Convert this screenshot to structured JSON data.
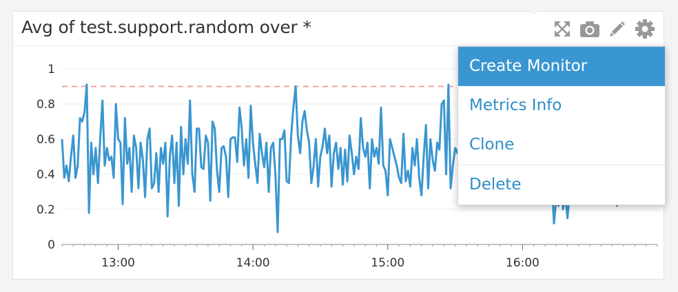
{
  "widget": {
    "title": "Avg of test.support.random over *"
  },
  "icons": {
    "expand": "expand-icon",
    "snapshot": "camera-icon",
    "edit": "pencil-icon",
    "settings": "gear-icon"
  },
  "menu": {
    "items": [
      {
        "label": "Create Monitor",
        "active": true
      },
      {
        "label": "Metrics Info",
        "active": false
      },
      {
        "label": "Clone",
        "active": false
      },
      {
        "label": "Delete",
        "active": false
      }
    ]
  },
  "colors": {
    "series": "#3a96d0",
    "threshold": "#f0a0a0",
    "menu_active_bg": "#3a96d0",
    "menu_text": "#2e8ec6"
  },
  "chart_data": {
    "type": "line",
    "title": "Avg of test.support.random over *",
    "xlabel": "",
    "ylabel": "",
    "ylim": [
      0,
      1
    ],
    "xlim_minutes": [
      755,
      1020
    ],
    "y_ticks": [
      "0",
      "0.2",
      "0.4",
      "0.6",
      "0.8",
      "1"
    ],
    "x_ticks": [
      {
        "label": "13:00",
        "minute": 780
      },
      {
        "label": "14:00",
        "minute": 840
      },
      {
        "label": "15:00",
        "minute": 900
      },
      {
        "label": "16:00",
        "minute": 960
      }
    ],
    "threshold": 0.9,
    "grid": true,
    "legend": "none",
    "x_start_minute": 755,
    "x_step_minutes": 1,
    "series": [
      {
        "values": [
          0.6,
          0.38,
          0.45,
          0.36,
          0.5,
          0.62,
          0.38,
          0.45,
          0.72,
          0.7,
          0.75,
          0.91,
          0.18,
          0.58,
          0.4,
          0.55,
          0.35,
          0.6,
          0.82,
          0.45,
          0.55,
          0.48,
          0.5,
          0.38,
          0.8,
          0.6,
          0.58,
          0.23,
          0.72,
          0.46,
          0.55,
          0.3,
          0.62,
          0.55,
          0.32,
          0.58,
          0.48,
          0.27,
          0.6,
          0.66,
          0.32,
          0.35,
          0.52,
          0.3,
          0.55,
          0.46,
          0.58,
          0.16,
          0.5,
          0.62,
          0.35,
          0.58,
          0.22,
          0.67,
          0.4,
          0.6,
          0.46,
          0.82,
          0.4,
          0.3,
          0.66,
          0.66,
          0.44,
          0.43,
          0.62,
          0.58,
          0.25,
          0.7,
          0.66,
          0.42,
          0.3,
          0.55,
          0.56,
          0.5,
          0.27,
          0.6,
          0.61,
          0.61,
          0.47,
          0.78,
          0.66,
          0.45,
          0.6,
          0.38,
          0.79,
          0.58,
          0.46,
          0.35,
          0.63,
          0.52,
          0.44,
          0.58,
          0.3,
          0.55,
          0.58,
          0.4,
          0.07,
          0.6,
          0.6,
          0.65,
          0.36,
          0.35,
          0.62,
          0.78,
          0.9,
          0.62,
          0.52,
          0.7,
          0.76,
          0.65,
          0.58,
          0.35,
          0.45,
          0.6,
          0.33,
          0.5,
          0.56,
          0.66,
          0.52,
          0.62,
          0.33,
          0.52,
          0.58,
          0.43,
          0.55,
          0.34,
          0.54,
          0.36,
          0.62,
          0.52,
          0.4,
          0.5,
          0.43,
          0.72,
          0.55,
          0.5,
          0.58,
          0.32,
          0.6,
          0.5,
          0.55,
          0.46,
          0.78,
          0.45,
          0.42,
          0.28,
          0.6,
          0.55,
          0.5,
          0.45,
          0.38,
          0.35,
          0.63,
          0.36,
          0.42,
          0.33,
          0.55,
          0.45,
          0.6,
          0.38,
          0.28,
          0.5,
          0.68,
          0.32,
          0.6,
          0.48,
          0.42,
          0.58,
          0.54,
          0.8,
          0.82,
          0.4,
          0.91,
          0.32,
          0.45,
          0.55,
          0.52,
          0.58,
          0.68,
          0.3,
          0.52,
          0.4,
          0.6,
          0.38,
          0.32,
          0.62,
          0.35,
          0.7,
          0.65,
          0.55,
          0.5,
          0.45,
          0.4,
          0.52,
          0.55,
          0.48,
          0.42,
          0.5,
          0.55,
          0.45,
          0.48,
          0.52,
          0.38,
          0.46,
          0.42,
          0.52,
          0.5,
          0.45,
          0.48,
          0.4,
          0.42,
          0.36,
          0.46,
          0.4,
          0.38,
          0.42,
          0.44,
          0.35,
          0.36,
          0.12,
          0.26,
          0.22,
          0.4,
          0.2,
          0.28,
          0.15,
          0.3,
          0.26,
          0.32,
          0.38,
          0.33,
          0.36,
          0.3,
          0.28,
          0.33,
          0.26,
          0.3,
          0.35,
          0.3,
          0.38,
          0.32,
          0.33,
          0.28,
          0.38,
          0.3,
          0.3,
          0.34,
          0.22,
          0.36,
          0.28,
          0.35,
          0.34
        ]
      }
    ]
  }
}
